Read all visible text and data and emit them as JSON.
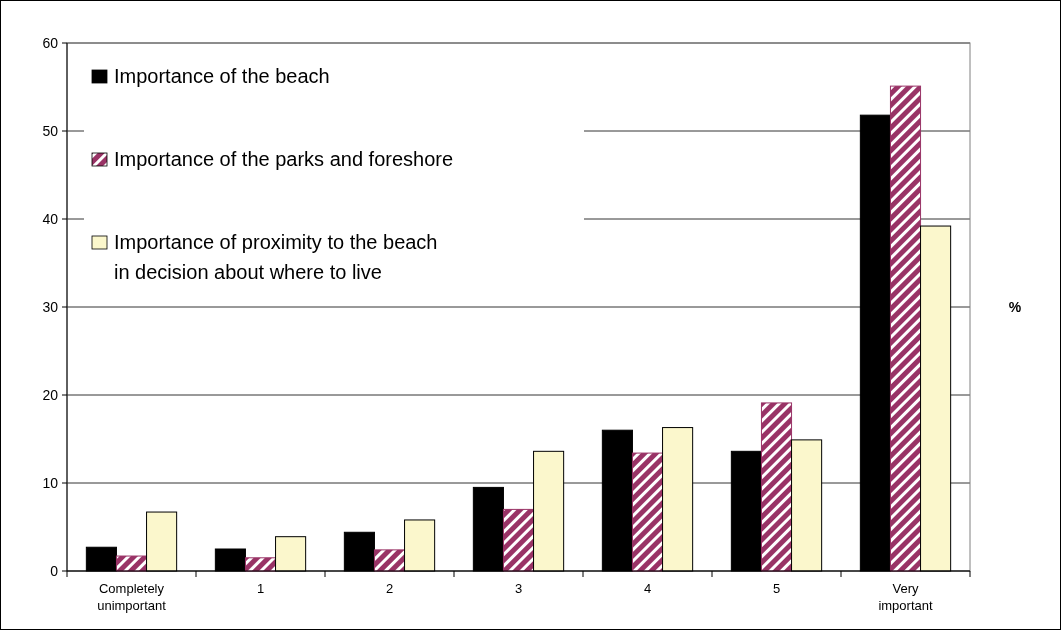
{
  "chart_data": {
    "type": "bar",
    "ylabel": "%",
    "categories": [
      "Completely unimportant",
      "1",
      "2",
      "3",
      "4",
      "5",
      "Very important"
    ],
    "series": [
      {
        "name": "Importance of the beach",
        "color": "#000000",
        "values": [
          2.7,
          2.5,
          4.4,
          9.5,
          16.0,
          13.6,
          51.8
        ]
      },
      {
        "name": "Importance of the parks and foreshore",
        "color": "#993366",
        "values": [
          1.7,
          1.5,
          2.4,
          7.0,
          13.4,
          19.1,
          55.1
        ]
      },
      {
        "name": "Importance of proximity to the beach in decision about where to live",
        "color": "#fbf7cc",
        "values": [
          6.7,
          3.9,
          5.8,
          13.6,
          16.3,
          14.9,
          39.2
        ]
      }
    ],
    "ylim": [
      0,
      60
    ],
    "yticks": [
      0,
      10,
      20,
      30,
      40,
      50,
      60
    ],
    "grid": "y",
    "legend": "top left"
  }
}
